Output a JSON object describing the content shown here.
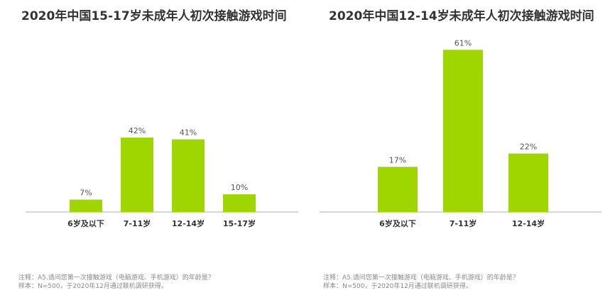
{
  "chart_data": [
    {
      "type": "bar",
      "title": "2020年中国15-17岁未成年人初次接触游戏时间",
      "categories": [
        "6岁及以下",
        "7-11岁",
        "12-14岁",
        "15-17岁"
      ],
      "values": [
        7,
        42,
        41,
        10
      ],
      "value_labels": [
        "7%",
        "42%",
        "41%",
        "10%"
      ],
      "unit": "%",
      "ylim": [
        0,
        61
      ],
      "grid": false,
      "legend": "none",
      "bar_color": "#9FD600",
      "notes": [
        "注释：A5.请问您第一次接触游戏（电脑游戏、手机游戏）的年龄是？",
        "样本：N=500，于2020年12月通过联机调研获得。"
      ]
    },
    {
      "type": "bar",
      "title": "2020年中国12-14岁未成年人初次接触游戏时间",
      "categories": [
        "6岁及以下",
        "7-11岁",
        "12-14岁"
      ],
      "values": [
        17,
        61,
        22
      ],
      "value_labels": [
        "17%",
        "61%",
        "22%"
      ],
      "unit": "%",
      "ylim": [
        0,
        61
      ],
      "grid": false,
      "legend": "none",
      "bar_color": "#9FD600",
      "notes": [
        "注释：A5.请问您第一次接触游戏（电脑游戏、手机游戏）的年龄是？",
        "样本：N=500，于2020年12月通过联机调研获得。"
      ]
    }
  ]
}
